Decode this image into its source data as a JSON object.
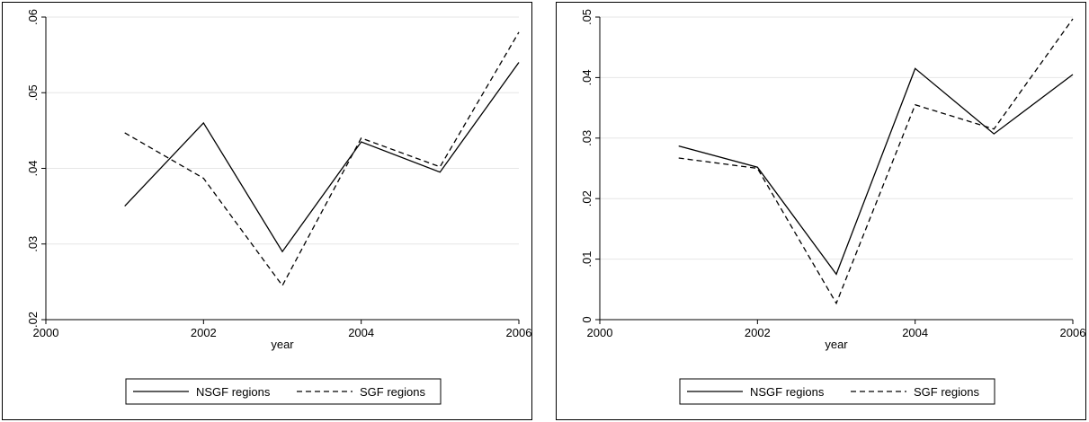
{
  "chart_data": [
    {
      "type": "line",
      "title": "",
      "xlabel": "year",
      "ylabel": "",
      "xlim": [
        2000,
        2006
      ],
      "ylim": [
        0.02,
        0.06
      ],
      "x_ticks": [
        2000,
        2002,
        2004,
        2006
      ],
      "x_tick_labels": [
        "2000",
        "2002",
        "2004",
        "2006"
      ],
      "y_ticks": [
        0.02,
        0.03,
        0.04,
        0.05,
        0.06
      ],
      "y_tick_labels": [
        ".02",
        ".03",
        ".04",
        ".05",
        ".06"
      ],
      "grid": true,
      "legend_position": "bottom",
      "x": [
        2001,
        2002,
        2003,
        2004,
        2005,
        2006
      ],
      "series": [
        {
          "name": "NSGF regions",
          "style": "solid",
          "values": [
            0.035,
            0.046,
            0.029,
            0.0435,
            0.0395,
            0.054
          ]
        },
        {
          "name": "SGF regions",
          "style": "dashed",
          "values": [
            0.0447,
            0.0387,
            0.0245,
            0.044,
            0.0402,
            0.058
          ]
        }
      ]
    },
    {
      "type": "line",
      "title": "",
      "xlabel": "year",
      "ylabel": "",
      "xlim": [
        2000,
        2006
      ],
      "ylim": [
        0,
        0.05
      ],
      "x_ticks": [
        2000,
        2002,
        2004,
        2006
      ],
      "x_tick_labels": [
        "2000",
        "2002",
        "2004",
        "2006"
      ],
      "y_ticks": [
        0,
        0.01,
        0.02,
        0.03,
        0.04,
        0.05
      ],
      "y_tick_labels": [
        "0",
        ".01",
        ".02",
        ".03",
        ".04",
        ".05"
      ],
      "grid": true,
      "legend_position": "bottom",
      "x": [
        2001,
        2002,
        2003,
        2004,
        2005,
        2006
      ],
      "series": [
        {
          "name": "NSGF regions",
          "style": "solid",
          "values": [
            0.0287,
            0.0252,
            0.0075,
            0.0415,
            0.0307,
            0.0405
          ]
        },
        {
          "name": "SGF regions",
          "style": "dashed",
          "values": [
            0.0267,
            0.025,
            0.0027,
            0.0355,
            0.0315,
            0.0497
          ]
        }
      ]
    }
  ],
  "colors": {
    "line": "#000000",
    "grid": "#e6e6e6",
    "frame": "#000000",
    "background": "#ffffff"
  }
}
